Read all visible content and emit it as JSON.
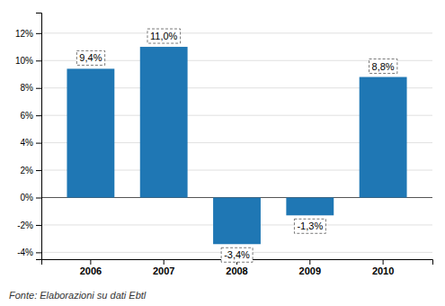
{
  "chart_data": {
    "type": "bar",
    "categories": [
      "2006",
      "2007",
      "2008",
      "2009",
      "2010"
    ],
    "values": [
      9.4,
      11.0,
      -3.4,
      -1.3,
      8.8
    ],
    "value_labels": [
      "9,4%",
      "11,0%",
      "-3,4%",
      "-1,3%",
      "8,8%"
    ],
    "ylim": [
      -4.5,
      13.5
    ],
    "yticks": [
      {
        "value": -4,
        "label": "-4%"
      },
      {
        "value": -2,
        "label": "-2%"
      },
      {
        "value": 0,
        "label": "0%"
      },
      {
        "value": 2,
        "label": "2%"
      },
      {
        "value": 4,
        "label": "4%"
      },
      {
        "value": 6,
        "label": "6%"
      },
      {
        "value": 8,
        "label": "8%"
      },
      {
        "value": 10,
        "label": "10%"
      },
      {
        "value": 12,
        "label": "12%"
      }
    ],
    "grid": true,
    "data_labels": true,
    "annotations": [
      "Fonte: Elaborazioni su dati Ebtl"
    ]
  }
}
